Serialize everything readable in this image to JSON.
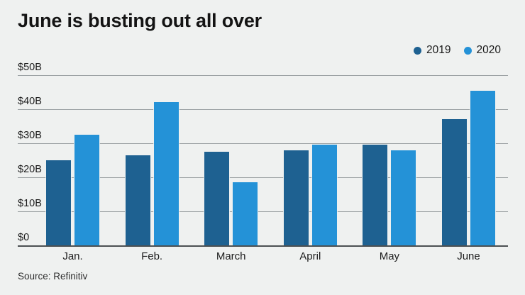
{
  "chart_data": {
    "type": "bar",
    "title": "June is busting out all over",
    "categories": [
      "Jan.",
      "Feb.",
      "March",
      "April",
      "May",
      "June"
    ],
    "series": [
      {
        "name": "2019",
        "color": "#1e6191",
        "values": [
          25,
          26.5,
          27.5,
          28,
          29.5,
          37
        ]
      },
      {
        "name": "2020",
        "color": "#2492d7",
        "values": [
          32.5,
          42,
          18.5,
          29.5,
          28,
          45.5
        ]
      }
    ],
    "unit": "billions of dollars",
    "ylim": [
      0,
      50
    ],
    "yticks": [
      {
        "value": 50,
        "label": "$50B"
      },
      {
        "value": 40,
        "label": "$40B"
      },
      {
        "value": 30,
        "label": "$30B"
      },
      {
        "value": 20,
        "label": "$20B"
      },
      {
        "value": 10,
        "label": "$10B"
      },
      {
        "value": 0,
        "label": "$0"
      }
    ],
    "grid": "horizontal",
    "legend_position": "top-right",
    "source": "Source: Refinitiv"
  },
  "colors": {
    "background": "#eff1f0",
    "gridline": "#9aa0a2",
    "axis_line": "#4c5052",
    "text": "#1a1a1a"
  }
}
